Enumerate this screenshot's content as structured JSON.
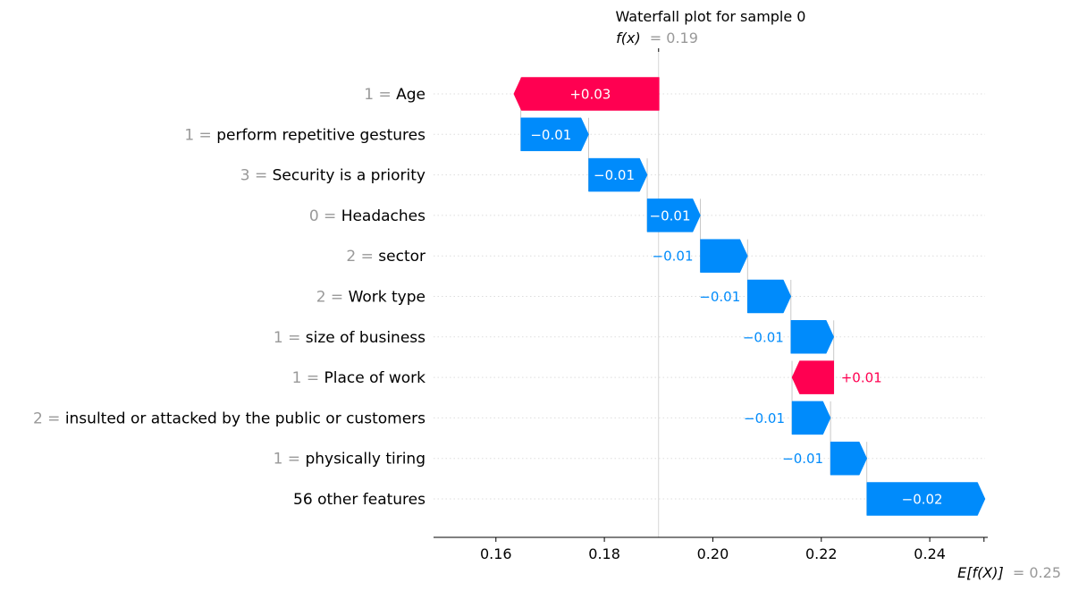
{
  "chart_data": {
    "type": "waterfall",
    "title": "Waterfall plot for sample 0",
    "fx": {
      "label": "f(x)",
      "value_text": "= 0.19",
      "value": 0.19
    },
    "efx": {
      "label": "E[f(X)]",
      "value_text": "= 0.25",
      "value": 0.25
    },
    "xlim": [
      0.1485,
      0.2502
    ],
    "xticks": [
      0.16,
      0.18,
      0.2,
      0.22,
      0.24
    ],
    "xtick_labels": [
      "0.16",
      "0.18",
      "0.20",
      "0.22",
      "0.24"
    ],
    "features": [
      {
        "value": "1 =",
        "name": "Age",
        "start": 0.1901,
        "end": 0.1633,
        "label": "+0.03",
        "sign": "pos"
      },
      {
        "value": "1 =",
        "name": "perform repetitive gestures",
        "start": 0.1646,
        "end": 0.1771,
        "label": "−0.01",
        "sign": "neg"
      },
      {
        "value": "3 =",
        "name": "Security is a priority",
        "start": 0.1771,
        "end": 0.1879,
        "label": "−0.01",
        "sign": "neg"
      },
      {
        "value": "0 =",
        "name": "Headaches",
        "start": 0.1879,
        "end": 0.1977,
        "label": "−0.01",
        "sign": "neg"
      },
      {
        "value": "2 =",
        "name": "sector",
        "start": 0.1977,
        "end": 0.2064,
        "label": "−0.01",
        "sign": "neg"
      },
      {
        "value": "2 =",
        "name": "Work type",
        "start": 0.2064,
        "end": 0.2144,
        "label": "−0.01",
        "sign": "neg"
      },
      {
        "value": "1 =",
        "name": "size of business",
        "start": 0.2144,
        "end": 0.2223,
        "label": "−0.01",
        "sign": "neg"
      },
      {
        "value": "1 =",
        "name": "Place of work",
        "start": 0.2223,
        "end": 0.2146,
        "label": "+0.01",
        "sign": "pos"
      },
      {
        "value": "2 =",
        "name": "insulted or attacked by the public or customers",
        "start": 0.2146,
        "end": 0.2217,
        "label": "−0.01",
        "sign": "neg"
      },
      {
        "value": "1 =",
        "name": "physically tiring",
        "start": 0.2217,
        "end": 0.2284,
        "label": "−0.01",
        "sign": "neg"
      },
      {
        "value": "",
        "name": "56 other features",
        "start": 0.2284,
        "end": 0.2502,
        "label": "−0.02",
        "sign": "neg"
      }
    ],
    "colors": {
      "positive": "#ff0051",
      "negative": "#008bfb",
      "value_gray": "#999999"
    }
  }
}
